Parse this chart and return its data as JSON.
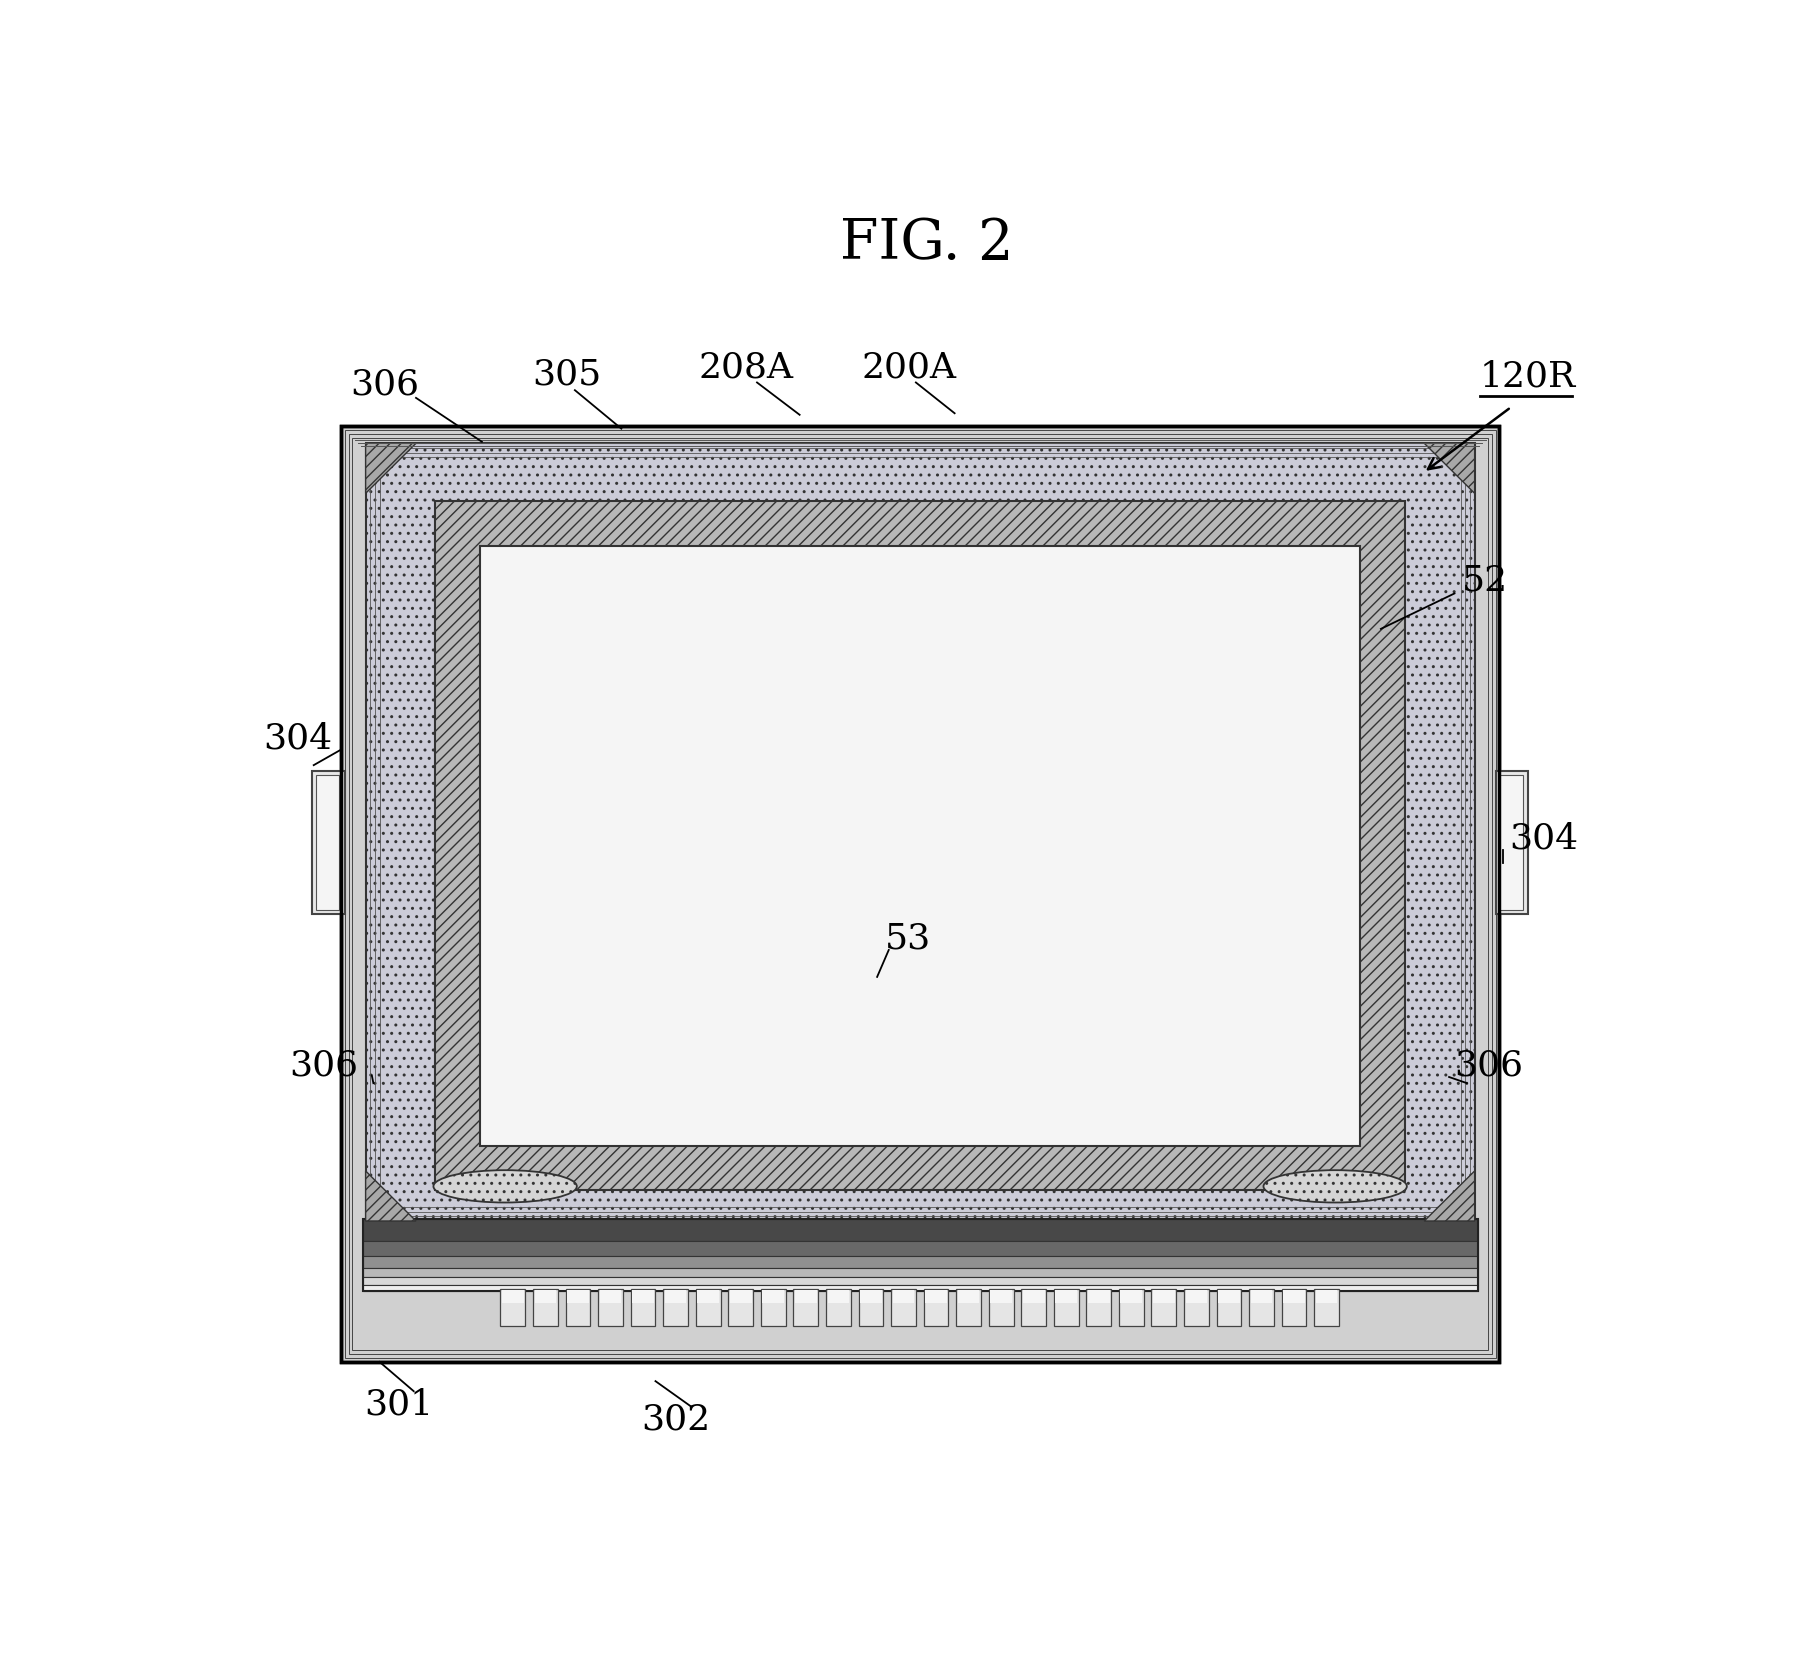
{
  "title": "FIG. 2",
  "bg": "#ffffff",
  "fig_label": "120R",
  "lw_thick": 2.5,
  "lw_med": 1.5,
  "lw_thin": 1.0,
  "colors": {
    "black": "#000000",
    "outer_bg": "#c8c8c8",
    "dot_fill": "#d2d2dc",
    "hatch_fill": "#c0c0c0",
    "white": "#ffffff",
    "near_white": "#f5f5f5",
    "light_gray": "#e0e0e0",
    "mid_gray": "#a0a0a0",
    "dark_gray": "#606060",
    "very_dark": "#303030",
    "chip_bump": "#e8e8e8",
    "substrate_dark": "#505050",
    "substrate_mid": "#787878",
    "substrate_light": "#b0b0b0"
  }
}
